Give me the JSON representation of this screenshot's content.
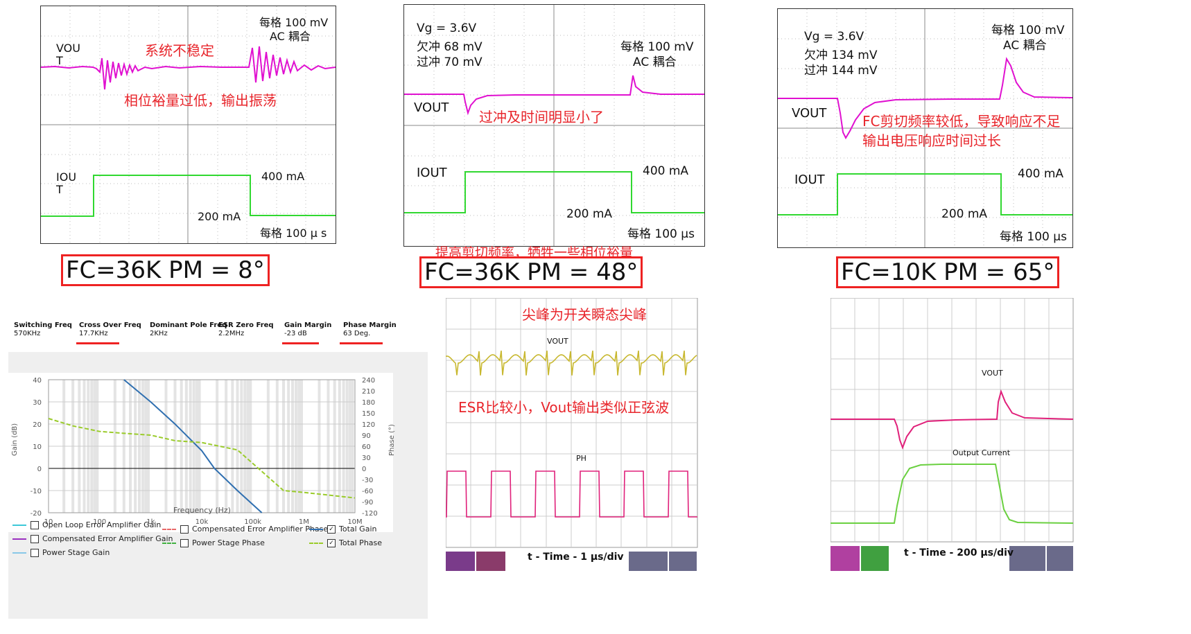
{
  "top_left": {
    "scale": "每格 100 mV",
    "coupling": "AC 耦合",
    "vout_label": "VOU\nT",
    "iout_label": "IOU\nT",
    "annot1": "系统不稳定",
    "annot2": "相位裕量过低，输出振荡",
    "i_high": "400 mA",
    "i_low": "200 mA",
    "time_scale": "每格 100 μ s",
    "fc_label": "FC=36K  PM = 8°"
  },
  "top_mid": {
    "vg": "Vg = 3.6V",
    "undershoot": "欠冲 68 mV",
    "overshoot": "过冲 70 mV",
    "scale": "每格 100 mV",
    "coupling": "AC 耦合",
    "vout_label": "VOUT",
    "iout_label": "IOUT",
    "annot": "过冲及时间明显小了",
    "i_high": "400 mA",
    "i_low": "200 mA",
    "time_scale": "每格 100 μs",
    "note": "提高剪切频率，牺牲一些相位裕量",
    "fc_label": "FC=36K PM = 48°"
  },
  "top_right": {
    "vg": "Vg = 3.6V",
    "undershoot": "欠冲 134 mV",
    "overshoot": "过冲 144 mV",
    "scale": "每格 100 mV",
    "coupling": "AC 耦合",
    "vout_label": "VOUT",
    "iout_label": "IOUT",
    "annot1": "FC剪切频率较低，导致响应不足",
    "annot2": "输出电压响应时间过长",
    "i_high": "400 mA",
    "i_low": "200 mA",
    "time_scale": "每格 100 μs",
    "fc_label": "FC=10K PM = 65°"
  },
  "bode": {
    "headers": [
      {
        "title": "Switching Freq",
        "value": "570KHz"
      },
      {
        "title": "Cross Over Freq",
        "value": "17.7KHz"
      },
      {
        "title": "Dominant Pole Freq",
        "value": "2KHz"
      },
      {
        "title": "ESR Zero Freq",
        "value": "2.2MHz"
      },
      {
        "title": "Gain Margin",
        "value": "-23 dB"
      },
      {
        "title": "Phase Margin",
        "value": "63 Deg."
      }
    ],
    "ylabel": "Gain (dB)",
    "y2label": "Phase (°)",
    "xlabel": "Frequency (Hz)",
    "legend": [
      {
        "label": "Open Loop Error Amplifier Gain",
        "color": "#3cc8d8",
        "checked": false
      },
      {
        "label": "Compensated Error Amplifier Gain",
        "color": "#9b30c0",
        "checked": false
      },
      {
        "label": "Power Stage Gain",
        "color": "#88c8e8",
        "checked": false
      },
      {
        "label": "Compensated Error Amplifier Phase",
        "color": "#e86868",
        "checked": false
      },
      {
        "label": "Power Stage Phase",
        "color": "#40b040",
        "checked": false
      },
      {
        "label": "Total Gain",
        "color": "#2f6fb0",
        "checked": true
      },
      {
        "label": "Total Phase",
        "color": "#9acb2a",
        "checked": true
      }
    ]
  },
  "bottom_mid": {
    "annot1": "尖峰为开关瞬态尖峰",
    "annot2": "ESR比较小，Vout输出类似正弦波",
    "vout_label": "VOUT",
    "ph_label": "PH",
    "time_label": "t - Time - 1 μs/div"
  },
  "bottom_right": {
    "vout_label": "VOUT",
    "iout_label": "Output Current",
    "time_label": "t - Time - 200 μs/div"
  },
  "chart_data": [
    {
      "type": "line",
      "x": [
        10,
        100,
        1000,
        10000,
        100000,
        1000000,
        10000000
      ],
      "series": [
        {
          "name": "Total Gain",
          "x": [
            300,
            1000,
            3000,
            10000,
            17700,
            50000,
            150000
          ],
          "values": [
            40,
            30,
            20,
            8,
            0,
            -10,
            -20
          ]
        },
        {
          "name": "Total Phase",
          "x": [
            10,
            30,
            100,
            300,
            1000,
            3000,
            10000,
            50000,
            400000,
            1000000,
            10000000
          ],
          "values": [
            135,
            115,
            100,
            95,
            90,
            75,
            70,
            50,
            -60,
            -65,
            -80
          ]
        }
      ],
      "xlabel": "Frequency (Hz)",
      "ylabel": "Gain (dB)",
      "y2label": "Phase (°)",
      "ylim": [
        -20,
        40
      ],
      "y2lim": [
        -120,
        240
      ],
      "xscale": "log",
      "xlim": [
        10,
        10000000
      ]
    }
  ]
}
